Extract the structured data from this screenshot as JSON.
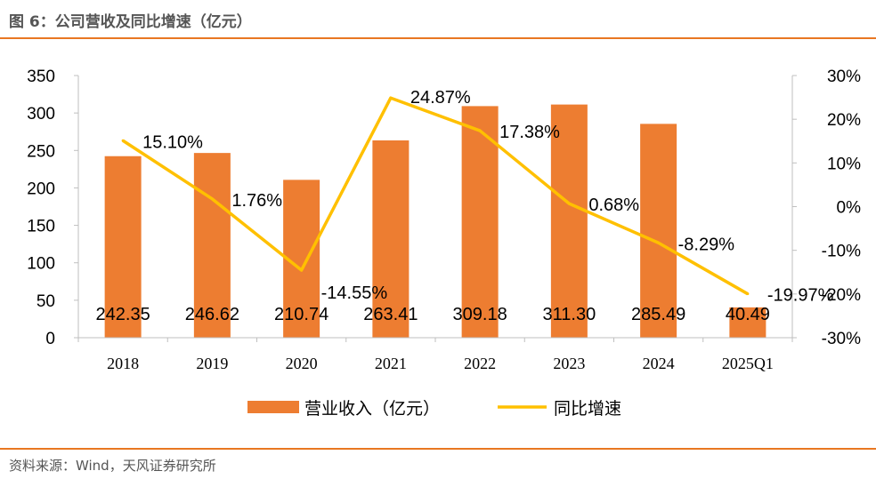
{
  "header": {
    "title": "图 6：公司营收及同比增速（亿元）"
  },
  "footer": {
    "source": "资料来源：Wind，天风证券研究所"
  },
  "colors": {
    "accent": "#e87722",
    "bar": "#ed7d31",
    "line": "#ffc000"
  },
  "chart_data": {
    "type": "bar",
    "categories": [
      "2018",
      "2019",
      "2020",
      "2021",
      "2022",
      "2023",
      "2024",
      "2025Q1"
    ],
    "series": [
      {
        "name": "营业收入（亿元）",
        "type": "bar",
        "axis": "left",
        "values": [
          242.35,
          246.62,
          210.74,
          263.41,
          309.18,
          311.3,
          285.49,
          40.49
        ],
        "labels": [
          "242.35",
          "246.62",
          "210.74",
          "263.41",
          "309.18",
          "311.30",
          "285.49",
          "40.49"
        ]
      },
      {
        "name": "同比增速",
        "type": "line",
        "axis": "right",
        "values": [
          15.1,
          1.76,
          -14.55,
          24.87,
          17.38,
          0.68,
          -8.29,
          -19.97
        ],
        "labels": [
          "15.10%",
          "1.76%",
          "-14.55%",
          "24.87%",
          "17.38%",
          "0.68%",
          "-8.29%",
          "-19.97%"
        ]
      }
    ],
    "yleft": {
      "lim": [
        0,
        350
      ],
      "ticks": [
        "0",
        "50",
        "100",
        "150",
        "200",
        "250",
        "300",
        "350"
      ]
    },
    "yright": {
      "lim": [
        -30,
        30
      ],
      "ticks": [
        "-30%",
        "-20%",
        "-10%",
        "0%",
        "10%",
        "20%",
        "30%"
      ]
    },
    "grid": false,
    "legend": "bottom"
  }
}
